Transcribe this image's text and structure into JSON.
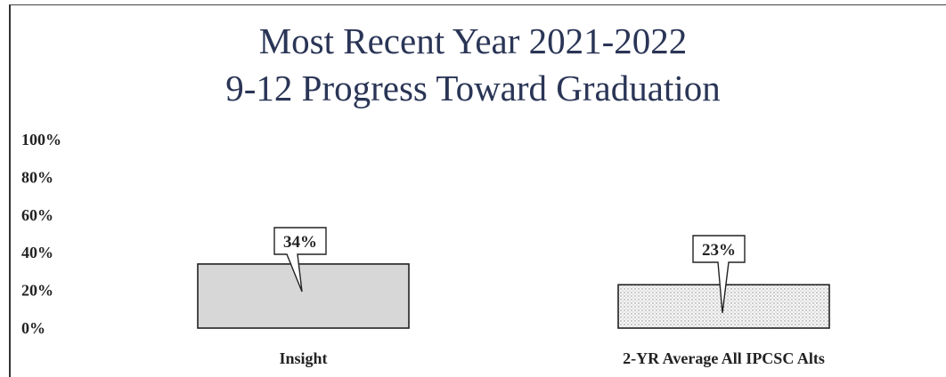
{
  "chart_data": {
    "type": "bar",
    "title": "Most Recent Year 2021-2022",
    "subtitle": "9-12 Progress Toward Graduation",
    "categories": [
      "Insight",
      "2-YR Average All IPCSC Alts"
    ],
    "values": [
      34,
      23
    ],
    "data_labels": [
      "34%",
      "23%"
    ],
    "ylim": [
      0,
      100
    ],
    "yticks": [
      0,
      20,
      40,
      60,
      80,
      100
    ],
    "ytick_labels": [
      "0%",
      "20%",
      "40%",
      "60%",
      "80%",
      "100%"
    ],
    "bar_colors": [
      "#d9d9d9",
      "#f3f3f3"
    ],
    "grid": false,
    "legend": "none"
  }
}
